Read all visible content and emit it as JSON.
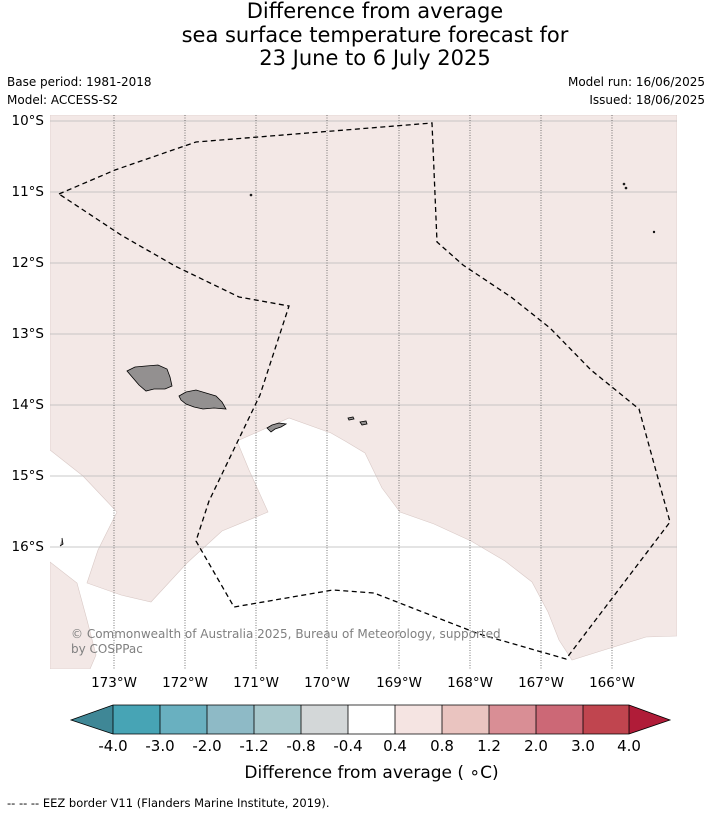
{
  "title": {
    "line1": "Difference from average",
    "line2": "sea surface temperature forecast for",
    "line3": "23 June to 6 July 2025"
  },
  "meta": {
    "base_period": "Base period: 1981-2018",
    "model": "Model: ACCESS-S2",
    "model_run": "Model run: 16/06/2025",
    "issued": "Issued: 18/06/2025"
  },
  "map": {
    "lat_labels": [
      "10°S",
      "11°S",
      "12°S",
      "13°S",
      "14°S",
      "15°S",
      "16°S"
    ],
    "lon_labels": [
      "173°W",
      "172°W",
      "171°W",
      "170°W",
      "169°W",
      "168°W",
      "167°W",
      "166°W"
    ],
    "credit_line1": "© Commonwealth of Australia 2025, Bureau of Meteorology, supported",
    "credit_line2": "by COSPPac",
    "colors": {
      "anomaly_fill": "#f3e8e6",
      "land": "#939090",
      "eez_border": "#000000"
    }
  },
  "colorbar": {
    "tick_labels": [
      "-4.0",
      "-3.0",
      "-2.0",
      "-1.2",
      "-0.8",
      "-0.4",
      "0.4",
      "0.8",
      "1.2",
      "2.0",
      "3.0",
      "4.0"
    ],
    "colors": [
      "#3f8796",
      "#47a4b5",
      "#69b0c0",
      "#8ebac6",
      "#a8c8cc",
      "#d3d7d8",
      "#ffffff",
      "#f5e4e2",
      "#eac4c0",
      "#d98e95",
      "#cc6876",
      "#c0454f",
      "#b01c38"
    ],
    "label": "Difference from average ( ∘C)"
  },
  "footer": {
    "legend_text": "--  --  -- EEZ border V11 (Flanders Marine Institute, 2019)."
  }
}
